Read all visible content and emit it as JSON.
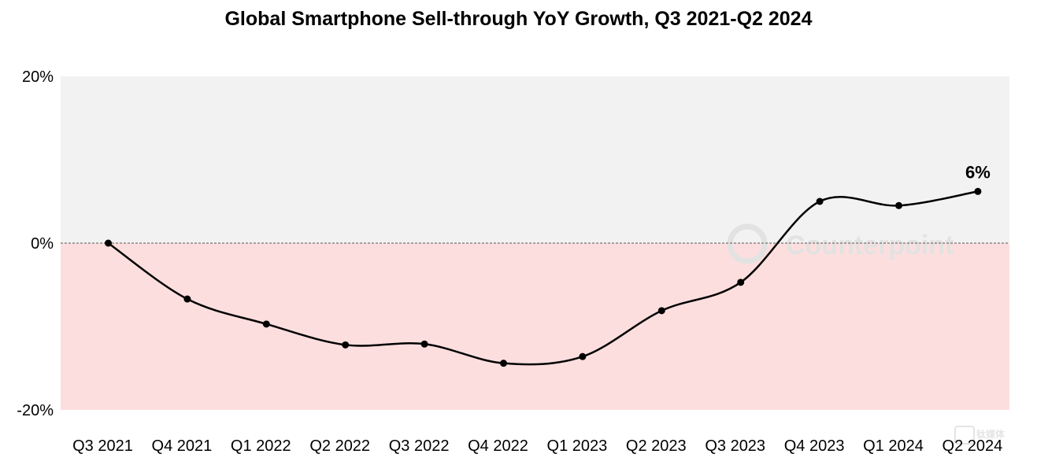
{
  "chart_data": {
    "type": "line",
    "title": "Global Smartphone Sell-through YoY Growth, Q3 2021-Q2 2024",
    "xlabel": "",
    "ylabel": "",
    "categories": [
      "Q3 2021",
      "Q4 2021",
      "Q1 2022",
      "Q2 2022",
      "Q3 2022",
      "Q4 2022",
      "Q1 2023",
      "Q2 2023",
      "Q3 2023",
      "Q4 2023",
      "Q1 2024",
      "Q2 2024"
    ],
    "series": [
      {
        "values": [
          0,
          -6.7,
          -9.7,
          -12.2,
          -12.1,
          -14.4,
          -13.6,
          -8.1,
          -4.7,
          5.0,
          4.5,
          6.2
        ]
      }
    ],
    "ylim": [
      -20,
      20
    ],
    "yticks": [
      {
        "value": 20,
        "label": "20%"
      },
      {
        "value": 0,
        "label": "0%"
      },
      {
        "value": -20,
        "label": "-20%"
      }
    ],
    "annotations": [
      {
        "index": 11,
        "text": "6%"
      }
    ],
    "grid": false,
    "legend": "none",
    "colors": {
      "line": "#000000",
      "positive_region": "#f2f2f2",
      "negative_region": "#fddede",
      "zero_line": "#555555"
    }
  },
  "watermark": {
    "text": "Counterpoint",
    "logo_text": "钛媒体"
  }
}
